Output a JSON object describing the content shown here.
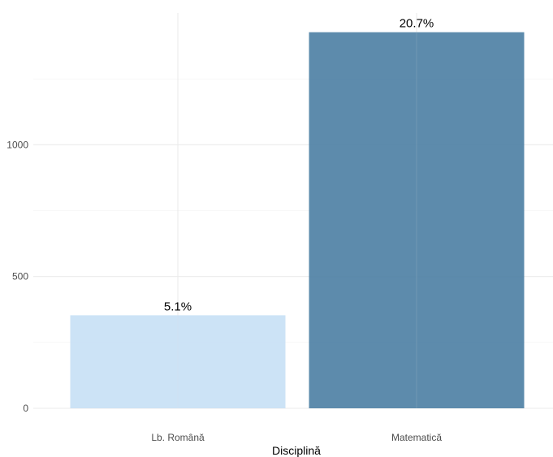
{
  "chart_data": {
    "type": "bar",
    "title": "",
    "xlabel": "Disciplină",
    "ylabel": "",
    "categories": [
      "Lb. Română",
      "Matematică"
    ],
    "values": [
      353,
      1427
    ],
    "data_labels": [
      "5.1%",
      "20.7%"
    ],
    "colors": [
      "#c6e0f5",
      "#4b7ea3"
    ],
    "bar_opacity": [
      0.9,
      0.9
    ],
    "ylim": [
      0,
      1500
    ],
    "y_ticks": [
      0,
      500,
      1000
    ],
    "y_tick_labels": [
      "0",
      "500",
      "1000"
    ],
    "grid": true,
    "legend": "none"
  }
}
